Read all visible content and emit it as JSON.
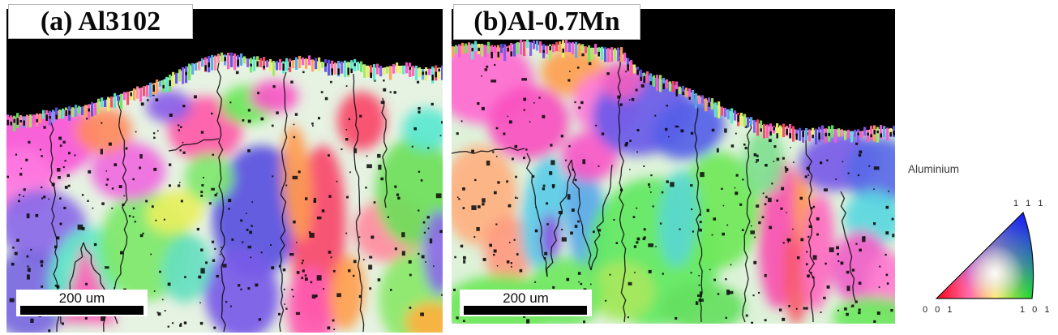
{
  "figure": {
    "panels": [
      {
        "id": "a",
        "label": "(a) Al3102",
        "scale_bar": "200 um"
      },
      {
        "id": "b",
        "label": "(b)Al-0.7Mn",
        "scale_bar": "200 um"
      }
    ],
    "legend": {
      "title": "Aluminium",
      "triangle_labels": {
        "top": "1 1 1",
        "bottom_left": "0 0 1",
        "bottom_right": "1 0 1"
      },
      "corner_colors": {
        "c001": "#ff0016",
        "c101": "#0cf00c",
        "c111": "#1414ff"
      }
    },
    "colors": {
      "page_bg": "#ffffff",
      "map_background": "#000000",
      "boundary": "#0a0a0a",
      "map_palette": [
        "#f84868",
        "#ff5ab0",
        "#f857d8",
        "#8a5ae8",
        "#5a50e0",
        "#5aa8e8",
        "#5ae8d0",
        "#6ae85a",
        "#a8e860",
        "#e8f060",
        "#ffa050",
        "#ff8ca0"
      ]
    }
  }
}
